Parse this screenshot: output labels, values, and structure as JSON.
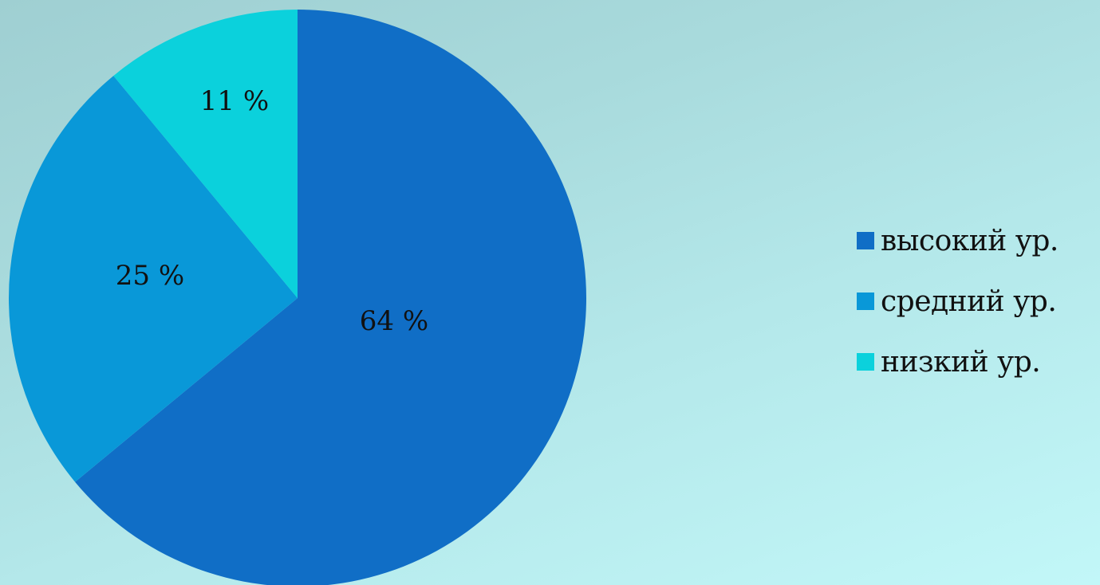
{
  "chart_data": {
    "type": "pie",
    "categories": [
      "высокий ур.",
      "средний ур.",
      "низкий ур."
    ],
    "values": [
      64,
      25,
      11
    ],
    "data_labels": [
      "64 %",
      "25 %",
      "11 %"
    ],
    "colors": [
      "#106ec6",
      "#0998d8",
      "#0bd1dc"
    ],
    "legend": {
      "position": "right",
      "entries": [
        "высокий ур.",
        "средний ур.",
        "низкий ур."
      ]
    },
    "start_angle": "12 o'clock",
    "direction": "clockwise"
  }
}
